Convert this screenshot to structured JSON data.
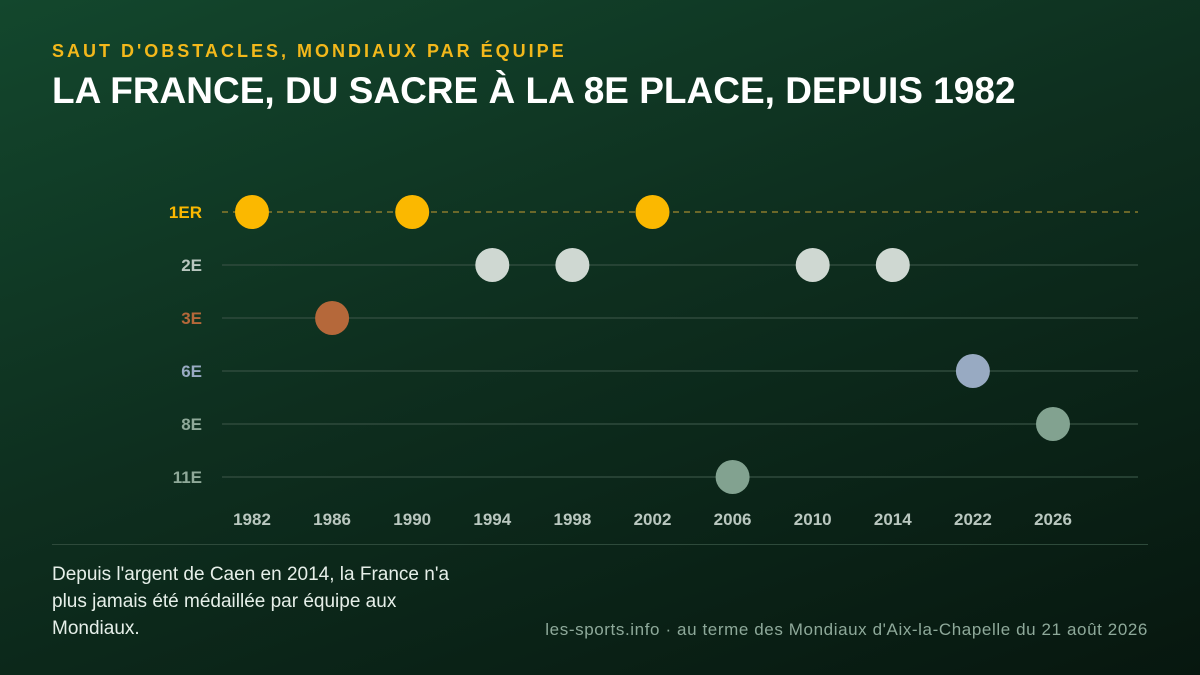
{
  "header": {
    "kicker": "SAUT D'OBSTACLES, MONDIAUX PAR ÉQUIPE",
    "title": "LA FRANCE, DU SACRE À LA 8E PLACE, DEPUIS 1982"
  },
  "footer": {
    "note": "Depuis l'argent de Caen en 2014, la France n'a plus jamais été médaillée par équipe aux Mondiaux.",
    "source": "les-sports.info · au terme des Mondiaux d'Aix-la-Chapelle du 21 août 2026"
  },
  "colors": {
    "gold": "#fbb800",
    "silver": "#cfd8d2",
    "bronze": "#b5683a",
    "sixth": "#98aac2",
    "other": "#82a290",
    "axis_label": "#b9c7bf",
    "muted_label": "#8fa999",
    "gridline": "#2f4a3c",
    "gold_line": "#8a7a2c"
  },
  "chart_data": {
    "type": "scatter",
    "title": "LA FRANCE, DU SACRE À LA 8E PLACE, DEPUIS 1982",
    "xlabel": "",
    "ylabel": "",
    "x_ticks": [
      "1982",
      "1986",
      "1990",
      "1994",
      "1998",
      "2002",
      "2006",
      "2010",
      "2014",
      "2022",
      "2026"
    ],
    "y_ticks": [
      {
        "label": "1ER",
        "value": 1
      },
      {
        "label": "2E",
        "value": 2
      },
      {
        "label": "3E",
        "value": 3
      },
      {
        "label": "6E",
        "value": 6
      },
      {
        "label": "8E",
        "value": 8
      },
      {
        "label": "11E",
        "value": 11
      }
    ],
    "points": [
      {
        "x": "1982",
        "y": 1
      },
      {
        "x": "1986",
        "y": 3
      },
      {
        "x": "1990",
        "y": 1
      },
      {
        "x": "1994",
        "y": 2
      },
      {
        "x": "1998",
        "y": 2
      },
      {
        "x": "2002",
        "y": 1
      },
      {
        "x": "2006",
        "y": 11
      },
      {
        "x": "2010",
        "y": 2
      },
      {
        "x": "2014",
        "y": 2
      },
      {
        "x": "2022",
        "y": 6
      },
      {
        "x": "2026",
        "y": 8
      }
    ],
    "grid": true,
    "legend": "none"
  }
}
